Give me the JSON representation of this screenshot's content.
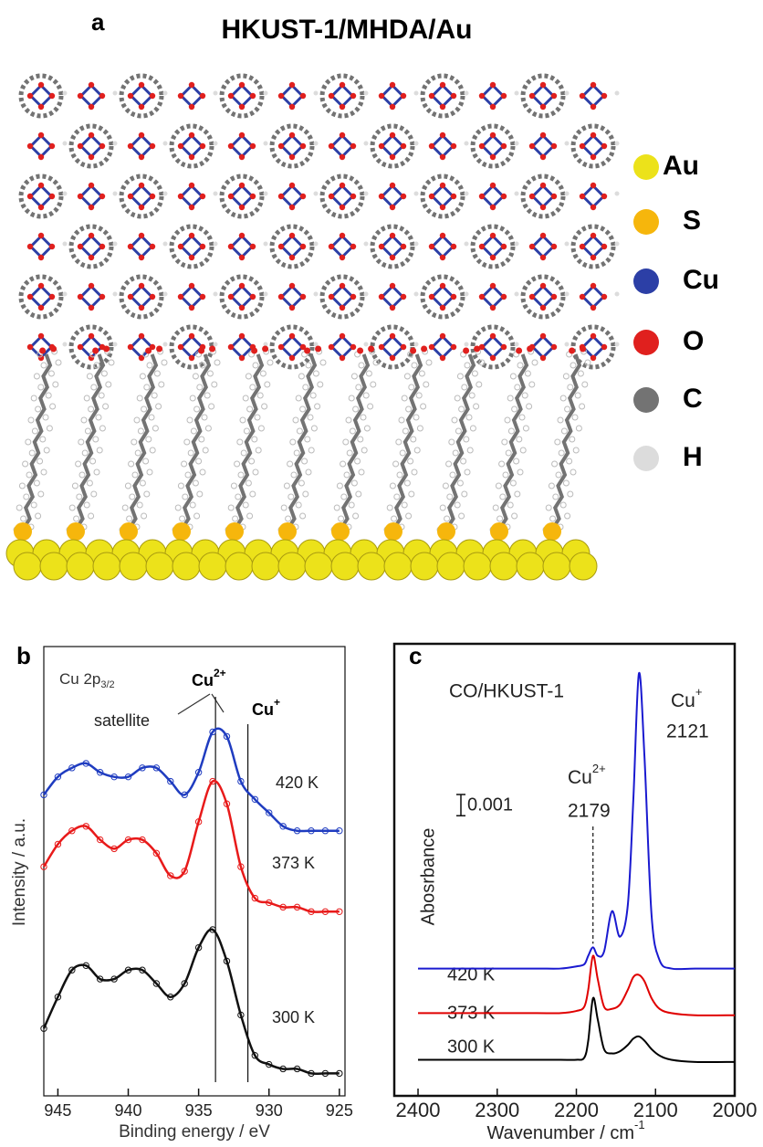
{
  "panel_a": {
    "label": "a",
    "title": "HKUST-1/MHDA/Au",
    "legend": [
      {
        "label": "Au",
        "color": "#ece21a"
      },
      {
        "label": "S",
        "color": "#f6b60c"
      },
      {
        "label": "Cu",
        "color": "#2c3fa6"
      },
      {
        "label": "O",
        "color": "#e0201e"
      },
      {
        "label": "C",
        "color": "#737373"
      },
      {
        "label": "H",
        "color": "#dcdcdc"
      }
    ]
  },
  "chart_data": [
    {
      "type": "line",
      "panel_label": "b",
      "xlabel": "Binding energy / eV",
      "ylabel": "Intensity / a.u.",
      "xlim": [
        946,
        924.6
      ],
      "xticks": [
        945,
        940,
        935,
        930,
        925
      ],
      "ylim": [
        0,
        10
      ],
      "vlines": [
        933.8,
        931.5
      ],
      "annotations": [
        {
          "text": "Cu 2p",
          "sub": "3/2"
        },
        {
          "text": "Cu",
          "sup": "2+"
        },
        {
          "text": "Cu",
          "sup": "+"
        },
        {
          "text": "satellite"
        }
      ],
      "x": [
        946,
        945,
        944,
        943,
        942,
        941,
        940,
        939,
        938,
        937,
        936,
        935,
        934,
        933,
        932,
        931,
        930,
        929,
        928,
        927,
        926,
        925
      ],
      "series": [
        {
          "name": "420 K",
          "color": "#1f3cc0",
          "values": [
            6.7,
            7.1,
            7.3,
            7.4,
            7.2,
            7.1,
            7.1,
            7.3,
            7.3,
            7.0,
            6.7,
            7.2,
            8.1,
            8.0,
            7.0,
            6.6,
            6.3,
            6.0,
            5.9,
            5.9,
            5.9,
            5.9
          ]
        },
        {
          "name": "373 K",
          "color": "#e81a1a",
          "values": [
            5.1,
            5.6,
            5.9,
            6.0,
            5.7,
            5.5,
            5.7,
            5.7,
            5.4,
            4.9,
            5.0,
            6.1,
            7.0,
            6.5,
            5.1,
            4.4,
            4.3,
            4.2,
            4.2,
            4.1,
            4.1,
            4.1
          ]
        },
        {
          "name": "300 K",
          "color": "#111111",
          "values": [
            1.5,
            2.2,
            2.8,
            2.9,
            2.6,
            2.6,
            2.8,
            2.8,
            2.5,
            2.2,
            2.5,
            3.3,
            3.7,
            3.0,
            1.8,
            0.9,
            0.7,
            0.6,
            0.6,
            0.5,
            0.5,
            0.5
          ]
        }
      ]
    },
    {
      "type": "line",
      "panel_label": "c",
      "xlabel": {
        "text": "Wavenumber / cm",
        "sup": "-1"
      },
      "ylabel": "Abosrbance",
      "xlim": [
        2430,
        2000
      ],
      "xticks": [
        2400,
        2300,
        2200,
        2100,
        2000
      ],
      "ylim": [
        0,
        0.0213
      ],
      "vlines": [
        2179
      ],
      "scale_bar": 0.001,
      "annotations": [
        {
          "text": "CO/HKUST-1"
        },
        {
          "text": "Cu",
          "sup": "+"
        },
        {
          "text": "2121"
        },
        {
          "text": "Cu",
          "sup": "2+"
        },
        {
          "text": "2179"
        }
      ],
      "x": [
        2400,
        2350,
        2300,
        2250,
        2220,
        2200,
        2190,
        2185,
        2179,
        2173,
        2165,
        2155,
        2145,
        2135,
        2128,
        2121,
        2114,
        2105,
        2095,
        2080,
        2050,
        2000
      ],
      "series": [
        {
          "name": "420 K",
          "color": "#1a1ad0",
          "values": [
            0.006,
            0.006,
            0.006,
            0.006,
            0.006,
            0.0061,
            0.0062,
            0.0066,
            0.007,
            0.0066,
            0.0068,
            0.0087,
            0.0075,
            0.009,
            0.014,
            0.0199,
            0.016,
            0.0085,
            0.0064,
            0.006,
            0.006,
            0.006
          ]
        },
        {
          "name": "373 K",
          "color": "#e00000",
          "values": [
            0.0039,
            0.0039,
            0.0039,
            0.0039,
            0.0039,
            0.004,
            0.0042,
            0.005,
            0.0066,
            0.0055,
            0.0042,
            0.0041,
            0.0043,
            0.005,
            0.0056,
            0.0057,
            0.0054,
            0.0046,
            0.0041,
            0.0039,
            0.0038,
            0.0038
          ]
        },
        {
          "name": "300 K",
          "color": "#000000",
          "values": [
            0.0017,
            0.0017,
            0.0017,
            0.0017,
            0.0017,
            0.0017,
            0.0018,
            0.0026,
            0.0046,
            0.0036,
            0.0022,
            0.002,
            0.0021,
            0.0024,
            0.0027,
            0.0028,
            0.0026,
            0.0022,
            0.0019,
            0.0017,
            0.0016,
            0.0016
          ]
        }
      ]
    }
  ]
}
